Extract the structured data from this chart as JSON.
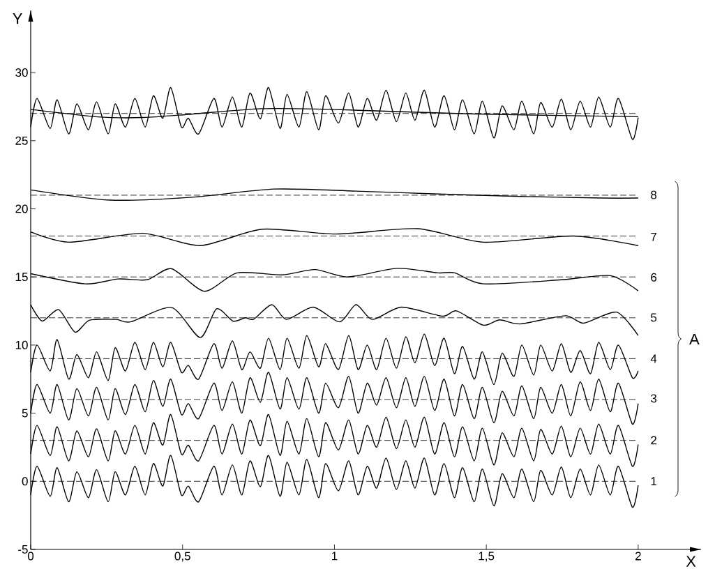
{
  "chart_data": {
    "type": "line",
    "xlabel": "X",
    "ylabel": "Y",
    "xlim": [
      0,
      2.207
    ],
    "ylim": [
      -5,
      34.56
    ],
    "xticks": [
      0,
      {
        "value": 0.5,
        "label": "0,5"
      },
      1,
      {
        "value": 1.5,
        "label": "1,5"
      },
      2
    ],
    "yticks": [
      -5,
      0,
      5,
      10,
      15,
      20,
      25,
      30
    ],
    "x": [
      0,
      0.021,
      0.064,
      0.087,
      0.125,
      0.152,
      0.19,
      0.217,
      0.255,
      0.278,
      0.312,
      0.343,
      0.377,
      0.404,
      0.435,
      0.461,
      0.496,
      0.519,
      0.553,
      0.603,
      0.63,
      0.664,
      0.695,
      0.722,
      0.756,
      0.783,
      0.821,
      0.844,
      0.883,
      0.909,
      0.948,
      0.971,
      1.013,
      1.047,
      1.078,
      1.108,
      1.139,
      1.17,
      1.204,
      1.235,
      1.265,
      1.296,
      1.33,
      1.361,
      1.395,
      1.422,
      1.46,
      1.487,
      1.525,
      1.552,
      1.591,
      1.617,
      1.656,
      1.679,
      1.717,
      1.747,
      1.778,
      1.809,
      1.843,
      1.87,
      1.908,
      1.935,
      1.981,
      2.0
    ],
    "series": [
      {
        "color": "#000000",
        "values": [
          26.0,
          28.1,
          25.9,
          28.0,
          25.5,
          27.7,
          25.8,
          27.85,
          25.5,
          27.7,
          26.0,
          28.1,
          26.0,
          28.3,
          26.65,
          28.9,
          26.0,
          26.65,
          25.5,
          28.1,
          26.0,
          28.2,
          26.0,
          28.5,
          26.6,
          28.9,
          25.9,
          28.4,
          26.0,
          28.6,
          25.8,
          28.3,
          26.3,
          28.5,
          26.0,
          28.1,
          26.5,
          28.7,
          26.4,
          28.5,
          26.5,
          28.7,
          26.0,
          28.3,
          25.8,
          28.0,
          25.5,
          27.9,
          25.2,
          27.55,
          25.8,
          27.9,
          25.5,
          27.8,
          26.0,
          28.05,
          25.8,
          27.9,
          26.0,
          28.2,
          26.0,
          28.1,
          25.1,
          26.7
        ]
      },
      {
        "color": "#000000",
        "x": [
          0,
          0.22,
          0.37,
          0.53,
          0.76,
          0.99,
          1.44,
          2.0
        ],
        "values": [
          27.3,
          26.75,
          26.7,
          26.95,
          27.35,
          27.3,
          26.97,
          26.76
        ]
      },
      {
        "name": "8",
        "color": "#000000",
        "x": [
          0,
          0.261,
          0.531,
          0.801,
          1.071,
          1.341,
          1.612,
          1.882,
          2.0
        ],
        "values": [
          21.39,
          20.64,
          20.85,
          21.45,
          21.3,
          21.09,
          20.91,
          20.79,
          20.79
        ]
      },
      {
        "name": "7",
        "color": "#000000",
        "x": [
          0,
          0.126,
          0.369,
          0.558,
          0.761,
          1.004,
          1.274,
          1.49,
          1.787,
          2.0
        ],
        "values": [
          18.3,
          17.55,
          18.2,
          17.3,
          18.5,
          18.15,
          18.54,
          17.55,
          18.0,
          17.3
        ]
      },
      {
        "name": "6",
        "color": "#000000",
        "x": [
          0,
          0.18,
          0.288,
          0.383,
          0.464,
          0.572,
          0.68,
          0.828,
          0.936,
          1.044,
          1.206,
          1.341,
          1.396,
          1.49,
          1.747,
          1.909,
          2.0
        ],
        "values": [
          15.24,
          14.49,
          14.85,
          14.79,
          15.6,
          13.95,
          15.3,
          15.15,
          15.54,
          15.0,
          15.63,
          15.3,
          15.3,
          14.49,
          14.79,
          15.09,
          13.98
        ]
      },
      {
        "name": "5",
        "color": "#000000",
        "x": [
          0,
          0.038,
          0.092,
          0.146,
          0.193,
          0.281,
          0.329,
          0.464,
          0.558,
          0.612,
          0.666,
          0.707,
          0.734,
          0.794,
          0.842,
          0.93,
          1.017,
          1.071,
          1.125,
          1.22,
          1.355,
          1.402,
          1.49,
          1.544,
          1.612,
          1.76,
          1.821,
          1.929,
          2.0
        ],
        "values": [
          12.96,
          11.76,
          12.6,
          10.95,
          11.82,
          11.88,
          11.7,
          12.75,
          10.55,
          12.66,
          11.76,
          12.0,
          11.9,
          12.96,
          11.88,
          12.78,
          11.7,
          12.96,
          11.88,
          12.78,
          12.12,
          12.51,
          11.46,
          11.85,
          11.55,
          12.15,
          11.61,
          12.42,
          10.7
        ]
      },
      {
        "name": "4",
        "color": "#000000",
        "values": [
          8.0,
          10.0,
          8.1,
          10.4,
          7.5,
          9.3,
          7.6,
          9.5,
          7.4,
          9.8,
          8.1,
          10.2,
          8.2,
          10.2,
          8.4,
          10.2,
          8.0,
          8.5,
          7.5,
          10.1,
          8.3,
          10.3,
          8.2,
          9.5,
          8.3,
          10.5,
          8.2,
          10.5,
          8.3,
          10.7,
          8.4,
          10.1,
          8.2,
          10.7,
          8.2,
          10.0,
          8.2,
          10.5,
          8.3,
          10.6,
          8.7,
          10.8,
          8.5,
          10.5,
          7.9,
          9.9,
          7.5,
          9.5,
          7.1,
          9.4,
          7.7,
          10.0,
          7.8,
          10.0,
          8.1,
          10.1,
          8.0,
          9.6,
          7.9,
          10.2,
          8.2,
          10.0,
          7.6,
          8.1
        ]
      },
      {
        "name": "3",
        "color": "#000000",
        "values": [
          5.0,
          7.1,
          5.0,
          7.1,
          4.5,
          6.8,
          4.8,
          6.9,
          4.5,
          6.8,
          4.9,
          7.1,
          5.1,
          7.4,
          5.5,
          7.5,
          4.9,
          5.7,
          4.6,
          7.2,
          5.2,
          7.3,
          5.0,
          7.6,
          5.8,
          8.0,
          5.3,
          7.6,
          5.3,
          7.6,
          5.0,
          7.2,
          5.4,
          7.7,
          5.0,
          7.2,
          5.6,
          7.6,
          5.4,
          7.6,
          5.5,
          7.7,
          5.2,
          7.5,
          4.8,
          7.1,
          4.6,
          6.9,
          4.3,
          6.6,
          4.8,
          7.0,
          4.6,
          6.9,
          5.0,
          7.1,
          4.8,
          7.3,
          5.2,
          7.5,
          5.1,
          7.2,
          4.2,
          5.7
        ]
      },
      {
        "name": "2",
        "color": "#000000",
        "values": [
          2.0,
          4.1,
          1.9,
          4.0,
          1.5,
          3.7,
          1.8,
          3.85,
          1.5,
          3.7,
          2.0,
          4.1,
          2.0,
          4.3,
          2.65,
          4.9,
          2.0,
          2.65,
          1.5,
          4.1,
          2.0,
          4.2,
          2.0,
          4.5,
          2.6,
          4.9,
          1.9,
          4.4,
          2.0,
          4.6,
          1.8,
          4.3,
          2.3,
          4.5,
          2.0,
          4.1,
          2.5,
          4.7,
          2.4,
          4.5,
          2.5,
          4.7,
          2.0,
          4.3,
          1.8,
          4.0,
          1.5,
          3.9,
          1.2,
          3.55,
          1.8,
          3.9,
          1.5,
          3.8,
          2.0,
          4.05,
          1.8,
          3.9,
          2.0,
          4.2,
          2.0,
          4.1,
          1.1,
          2.7
        ]
      },
      {
        "name": "1",
        "color": "#000000",
        "values": [
          -1.0,
          1.1,
          -1.1,
          1.0,
          -1.5,
          0.7,
          -1.2,
          0.85,
          -1.5,
          0.7,
          -1.0,
          1.1,
          -1.0,
          1.3,
          -0.35,
          1.9,
          -1.0,
          -0.35,
          -1.5,
          1.1,
          -1.0,
          1.2,
          -1.0,
          1.5,
          -0.4,
          1.9,
          -1.1,
          1.4,
          -1.0,
          1.6,
          -1.2,
          1.3,
          -0.7,
          1.5,
          -1.0,
          1.1,
          -0.5,
          1.7,
          -0.6,
          1.5,
          -0.5,
          1.7,
          -1.0,
          1.3,
          -1.2,
          1.0,
          -1.5,
          0.9,
          -1.8,
          0.55,
          -1.2,
          0.9,
          -1.5,
          0.8,
          -1.0,
          1.05,
          -1.2,
          0.9,
          -1.0,
          1.2,
          -1.0,
          1.1,
          -1.9,
          -0.3
        ]
      }
    ],
    "ref_lines": [
      {
        "axis": "y",
        "value": 27,
        "line_style": "dashed",
        "color": "#000000"
      },
      {
        "axis": "y",
        "value": 21,
        "line_style": "dashed",
        "color": "#000000"
      },
      {
        "axis": "y",
        "value": 18,
        "line_style": "dashed",
        "color": "#000000"
      },
      {
        "axis": "y",
        "value": 15,
        "line_style": "dashed",
        "color": "#000000"
      },
      {
        "axis": "y",
        "value": 12,
        "line_style": "dashed",
        "color": "#000000"
      },
      {
        "axis": "y",
        "value": 9,
        "line_style": "dashed",
        "color": "#000000"
      },
      {
        "axis": "y",
        "value": 6,
        "line_style": "dashed",
        "color": "#000000"
      },
      {
        "axis": "y",
        "value": 3,
        "line_style": "dashed",
        "color": "#000000"
      },
      {
        "axis": "y",
        "value": 0,
        "line_style": "dashed",
        "color": "#000000"
      }
    ],
    "annotations": [
      "A"
    ]
  }
}
